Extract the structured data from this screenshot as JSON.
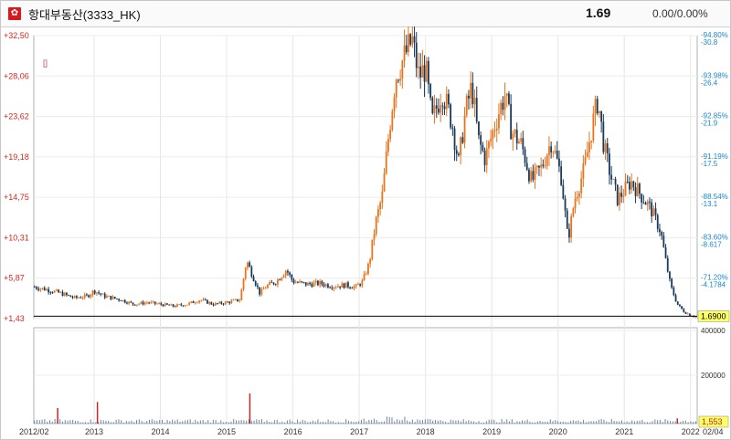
{
  "header": {
    "flag_icon": "hong-kong-flag-icon",
    "stock_name": "항대부동산(3333_HK)",
    "price": "1.69",
    "change": "0.00/0.00%"
  },
  "marker": "[]",
  "colors": {
    "up": "#e8741c",
    "down": "#1a3a5a",
    "price_axis": "#d6281e",
    "pct_axis": "#1a86c8",
    "volume": "#6a86a8",
    "volume_spike": "#c0282a",
    "badge_bg": "#ffff66"
  },
  "chart_data": {
    "type": "candlestick",
    "x_start_label": "2012/02",
    "x_end_label": "02/04",
    "x_ticks": [
      "2013",
      "2014",
      "2015",
      "2016",
      "2017",
      "2018",
      "2019",
      "2020",
      "2021",
      "2022"
    ],
    "price_ticks": [
      "+32,50",
      "+28,06",
      "+23,62",
      "+19,18",
      "+14,75",
      "+10,31",
      "+5,87",
      "+1,43"
    ],
    "right_ticks": [
      {
        "pct": "-94.80%",
        "val": "-30.8"
      },
      {
        "pct": "-93.98%",
        "val": "-26.4"
      },
      {
        "pct": "-92.85%",
        "val": "-21.9"
      },
      {
        "pct": "-91.19%",
        "val": "-17.5"
      },
      {
        "pct": "-88.54%",
        "val": "-13.1"
      },
      {
        "pct": "-83.60%",
        "val": "-8.617"
      },
      {
        "pct": "-71.20%",
        "val": "-4.1784"
      }
    ],
    "last_price_label": "1.6900",
    "volume_ticks": [
      "400000",
      "200000"
    ],
    "last_volume_label": "1,553",
    "ylim": [
      1.43,
      32.5
    ],
    "price_series": [
      [
        2012.1,
        4.9
      ],
      [
        2012.3,
        4.6
      ],
      [
        2012.5,
        4.2
      ],
      [
        2012.7,
        3.7
      ],
      [
        2012.9,
        3.9
      ],
      [
        2013.0,
        4.5
      ],
      [
        2013.15,
        3.9
      ],
      [
        2013.4,
        3.5
      ],
      [
        2013.6,
        3.0
      ],
      [
        2013.8,
        3.2
      ],
      [
        2014.0,
        3.0
      ],
      [
        2014.2,
        2.8
      ],
      [
        2014.4,
        3.0
      ],
      [
        2014.6,
        3.5
      ],
      [
        2014.8,
        3.0
      ],
      [
        2015.0,
        3.2
      ],
      [
        2015.2,
        3.5
      ],
      [
        2015.3,
        7.8
      ],
      [
        2015.4,
        6.0
      ],
      [
        2015.5,
        4.2
      ],
      [
        2015.6,
        5.0
      ],
      [
        2015.75,
        5.5
      ],
      [
        2015.9,
        6.8
      ],
      [
        2016.0,
        5.5
      ],
      [
        2016.2,
        5.2
      ],
      [
        2016.4,
        5.3
      ],
      [
        2016.6,
        5.0
      ],
      [
        2016.8,
        5.1
      ],
      [
        2016.95,
        4.9
      ],
      [
        2017.05,
        5.5
      ],
      [
        2017.15,
        7.5
      ],
      [
        2017.25,
        12.0
      ],
      [
        2017.35,
        15.0
      ],
      [
        2017.45,
        22.0
      ],
      [
        2017.55,
        28.0
      ],
      [
        2017.7,
        30.5
      ],
      [
        2017.8,
        32.0
      ],
      [
        2017.9,
        28.0
      ],
      [
        2018.0,
        29.0
      ],
      [
        2018.1,
        23.0
      ],
      [
        2018.25,
        26.5
      ],
      [
        2018.4,
        23.0
      ],
      [
        2018.5,
        18.5
      ],
      [
        2018.6,
        24.0
      ],
      [
        2018.7,
        27.0
      ],
      [
        2018.8,
        21.0
      ],
      [
        2018.9,
        19.0
      ],
      [
        2019.0,
        21.5
      ],
      [
        2019.1,
        24.0
      ],
      [
        2019.2,
        26.0
      ],
      [
        2019.3,
        22.0
      ],
      [
        2019.45,
        20.5
      ],
      [
        2019.6,
        16.5
      ],
      [
        2019.75,
        18.0
      ],
      [
        2019.9,
        21.0
      ],
      [
        2020.05,
        17.0
      ],
      [
        2020.15,
        10.0
      ],
      [
        2020.25,
        14.5
      ],
      [
        2020.4,
        18.0
      ],
      [
        2020.5,
        22.0
      ],
      [
        2020.6,
        25.5
      ],
      [
        2020.7,
        20.0
      ],
      [
        2020.8,
        17.0
      ],
      [
        2020.9,
        14.5
      ],
      [
        2021.0,
        15.5
      ],
      [
        2021.1,
        16.5
      ],
      [
        2021.25,
        15.0
      ],
      [
        2021.4,
        13.5
      ],
      [
        2021.55,
        11.0
      ],
      [
        2021.62,
        8.0
      ],
      [
        2021.7,
        5.0
      ],
      [
        2021.8,
        3.0
      ],
      [
        2021.9,
        2.2
      ],
      [
        2022.0,
        1.8
      ],
      [
        2022.08,
        1.69
      ]
    ],
    "volume_spikes": [
      [
        2012.45,
        0.18
      ],
      [
        2013.05,
        0.25
      ],
      [
        2015.35,
        0.35
      ],
      [
        2021.8,
        0.06
      ]
    ]
  }
}
